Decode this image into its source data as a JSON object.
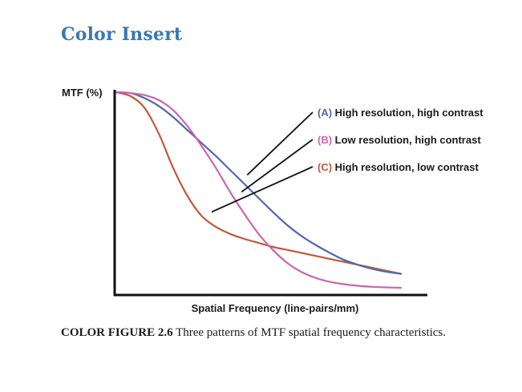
{
  "page": {
    "title": "Color Insert"
  },
  "caption": {
    "label": "COLOR FIGURE 2.6",
    "text": "Three patterns of MTF spatial frequency characteristics."
  },
  "chart_data": {
    "type": "line",
    "title": "",
    "xlabel": "Spatial Frequency (line-pairs/mm)",
    "ylabel": "MTF (%)",
    "xlim": [
      0,
      100
    ],
    "ylim": [
      0,
      100
    ],
    "grid": false,
    "legend_placement": "top-right",
    "series": [
      {
        "id": "A",
        "name": "(A) High resolution, high contrast",
        "tag": "(A)",
        "desc": "High resolution, high contrast",
        "color": "#5566aa",
        "x": [
          0,
          5,
          10,
          15,
          20,
          25,
          30,
          35,
          40,
          45,
          50,
          55,
          60,
          65,
          70,
          75,
          80,
          85,
          90,
          95,
          100
        ],
        "y": [
          100,
          99.5,
          97,
          93,
          87.5,
          81,
          74.5,
          68,
          61,
          54,
          47,
          40,
          33.5,
          28,
          23.5,
          19.5,
          16,
          13.5,
          11.5,
          10,
          9
        ]
      },
      {
        "id": "B",
        "name": "(B) Low resolution, high contrast",
        "tag": "(B)",
        "desc": "Low resolution, high contrast",
        "color": "#cc66aa",
        "x": [
          0,
          5,
          10,
          15,
          20,
          25,
          30,
          35,
          40,
          45,
          50,
          55,
          60,
          65,
          70,
          75,
          80,
          85,
          90,
          95,
          100
        ],
        "y": [
          100,
          99.5,
          98.5,
          96,
          91,
          83,
          73,
          62,
          50,
          39,
          29,
          21,
          14.5,
          10,
          7,
          5,
          3.8,
          3,
          2.5,
          2.2,
          2
        ]
      },
      {
        "id": "C",
        "name": "(C) High resolution, low contrast",
        "tag": "(C)",
        "desc": "High resolution, low contrast",
        "color": "#c0583a",
        "x": [
          0,
          5,
          10,
          15,
          20,
          25,
          30,
          35,
          40,
          45,
          50,
          55,
          60,
          65,
          70,
          75,
          80,
          85,
          90,
          95,
          100
        ],
        "y": [
          100,
          98,
          92,
          79,
          62,
          48,
          38,
          32.5,
          29,
          26.5,
          24.5,
          22.5,
          21,
          19.5,
          18,
          16.5,
          15,
          13.5,
          12,
          10.5,
          9
        ]
      }
    ],
    "pointers": [
      {
        "series": "A",
        "x": 46,
        "y": 58.5
      },
      {
        "series": "B",
        "x": 44,
        "y": 50
      },
      {
        "series": "C",
        "x": 33.5,
        "y": 40
      }
    ]
  }
}
